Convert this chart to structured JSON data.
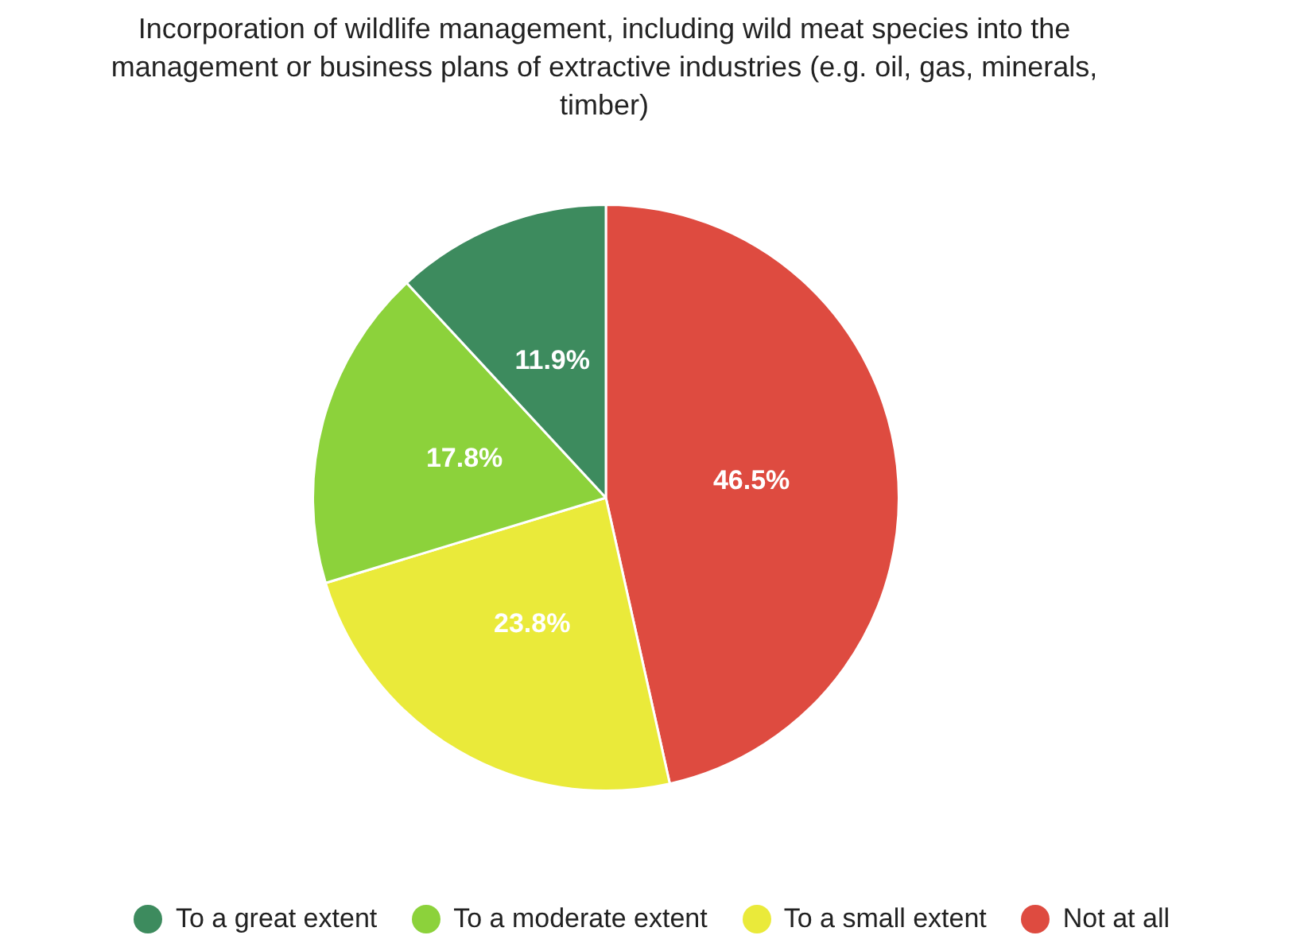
{
  "chart_data": {
    "type": "pie",
    "title": "Incorporation of wildlife management, including wild meat species into the management or business plans of extractive industries (e.g. oil, gas, minerals, timber)",
    "categories": [
      "To a great extent",
      "To a moderate extent",
      "To a small extent",
      "Not at all"
    ],
    "values": [
      11.9,
      17.8,
      23.8,
      46.5
    ],
    "colors": [
      "#3d8b5e",
      "#8cd23b",
      "#eaea3a",
      "#de4b40"
    ],
    "value_labels": [
      "11.9%",
      "17.8%",
      "23.8%",
      "46.5%"
    ],
    "legend": "bottom"
  }
}
